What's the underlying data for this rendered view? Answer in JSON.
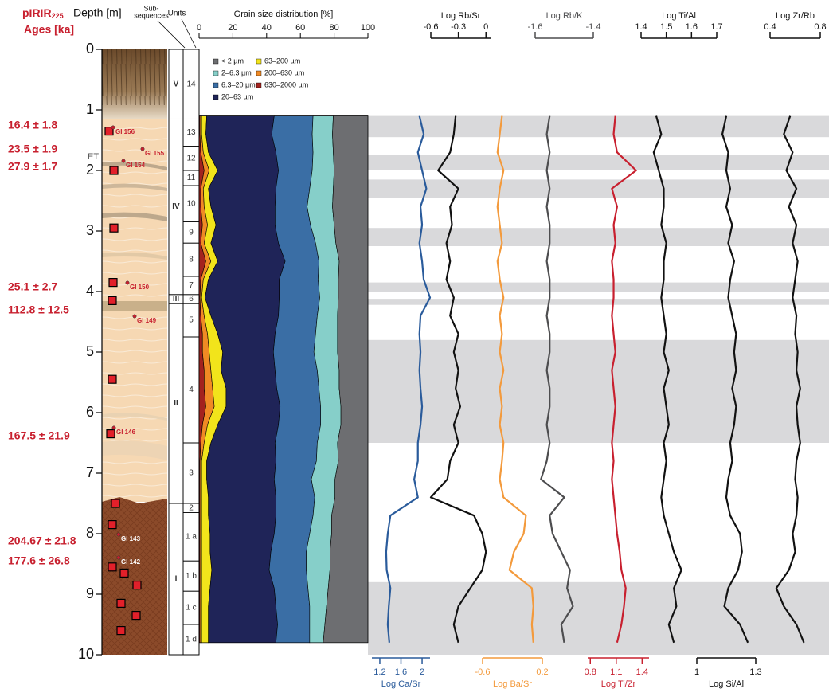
{
  "header": {
    "age_title": "pIRIR",
    "age_title_sub": "225",
    "age_unit": "Ages [ka]",
    "depth_label": "Depth [m]",
    "subseq_label_1": "Sub-",
    "subseq_label_2": "sequences",
    "units_label": "Units"
  },
  "depth_axis": {
    "ylim": [
      0,
      10
    ],
    "yticks": [
      0,
      1,
      2,
      3,
      4,
      5,
      6,
      7,
      8,
      9,
      10
    ]
  },
  "ages": {
    "labels": [
      "16.4  ± 1.8",
      "23.5  ± 1.9",
      "27.9  ± 1.7",
      "25.1  ± 2.7",
      "112.8  ± 12.5",
      "167.5 ± 21.9",
      "204.67 ± 21.8",
      "177.6  ± 26.8"
    ]
  },
  "profile": {
    "et_label": "ET",
    "sample_labels": [
      "GI 156",
      "GI 155",
      "GI 154",
      "GI 150",
      "GI 149",
      "GI 146",
      "GI 143",
      "GI 142"
    ],
    "sample_depths": [
      1.35,
      2.0,
      2.95,
      3.85,
      4.15,
      5.45,
      6.35,
      7.5,
      7.85,
      8.55,
      8.65,
      8.85,
      9.15,
      9.35,
      9.6
    ]
  },
  "units": [
    {
      "label": "V",
      "top": 0,
      "bottom": 1.15
    },
    {
      "label": "IV",
      "top": 1.15,
      "bottom": 4.05
    },
    {
      "label": "III",
      "top": 4.05,
      "bottom": 4.2
    },
    {
      "label": "II",
      "top": 4.2,
      "bottom": 7.5
    },
    {
      "label": "I",
      "top": 7.5,
      "bottom": 10
    }
  ],
  "subsequences": [
    {
      "label": "14",
      "top": 0,
      "bottom": 1.15
    },
    {
      "label": "13",
      "top": 1.15,
      "bottom": 1.6
    },
    {
      "label": "12",
      "top": 1.6,
      "bottom": 2.0
    },
    {
      "label": "11",
      "top": 2.0,
      "bottom": 2.25
    },
    {
      "label": "10",
      "top": 2.25,
      "bottom": 2.85
    },
    {
      "label": "9",
      "top": 2.85,
      "bottom": 3.2
    },
    {
      "label": "8",
      "top": 3.2,
      "bottom": 3.75
    },
    {
      "label": "7",
      "top": 3.75,
      "bottom": 4.05
    },
    {
      "label": "6",
      "top": 4.05,
      "bottom": 4.2
    },
    {
      "label": "5",
      "top": 4.2,
      "bottom": 4.75
    },
    {
      "label": "4",
      "top": 4.75,
      "bottom": 6.5
    },
    {
      "label": "3",
      "top": 6.5,
      "bottom": 7.5
    },
    {
      "label": "2",
      "top": 7.5,
      "bottom": 7.65
    },
    {
      "label": "1 a",
      "top": 7.65,
      "bottom": 8.45
    },
    {
      "label": "1 b",
      "top": 8.45,
      "bottom": 8.95
    },
    {
      "label": "1 c",
      "top": 8.95,
      "bottom": 9.5
    },
    {
      "label": "1 d",
      "top": 9.5,
      "bottom": 10
    }
  ],
  "shaded_intervals": [
    [
      1.1,
      1.45
    ],
    [
      1.75,
      2.0
    ],
    [
      2.15,
      2.45
    ],
    [
      2.95,
      3.25
    ],
    [
      3.85,
      4.0
    ],
    [
      4.12,
      4.22
    ],
    [
      4.8,
      6.5
    ],
    [
      8.8,
      10
    ]
  ],
  "depths": [
    1.1,
    1.4,
    1.7,
    2.0,
    2.3,
    2.6,
    2.9,
    3.2,
    3.5,
    3.8,
    4.1,
    4.4,
    4.7,
    5.0,
    5.3,
    5.6,
    5.9,
    6.2,
    6.5,
    6.8,
    7.1,
    7.4,
    7.7,
    8.0,
    8.3,
    8.6,
    8.9,
    9.2,
    9.5,
    9.8
  ],
  "chart_data": [
    {
      "type": "area",
      "stacked": true,
      "xlabel": "Grain size distribution [%]",
      "xlim": [
        0,
        100
      ],
      "xticks": [
        0,
        20,
        40,
        60,
        80,
        100
      ],
      "series": [
        {
          "name": "< 2 µm",
          "color": "#6d6e71",
          "values": [
            20.5,
            21,
            20.5,
            20,
            20.5,
            21,
            20,
            19,
            17,
            17.5,
            17.5,
            18,
            18,
            18,
            17,
            17,
            16,
            16,
            18,
            17.5,
            19.5,
            19.5,
            21.5,
            21.5,
            22.5,
            22.5,
            23.5,
            24.5,
            25.5,
            26.5
          ]
        },
        {
          "name": "2–6.3 µm",
          "color": "#86cfc9",
          "values": [
            12,
            12,
            12,
            13,
            14,
            15,
            14,
            12,
            12,
            12,
            11,
            12,
            13,
            14,
            13,
            12,
            12,
            12,
            12,
            13,
            14,
            12,
            11,
            13,
            14,
            14,
            12,
            10,
            9,
            8
          ]
        },
        {
          "name": "6.3–20 µm",
          "color": "#3a6ea5",
          "values": [
            23,
            24,
            22,
            20,
            20,
            19,
            21,
            22,
            20,
            23,
            24,
            23,
            24,
            24,
            25,
            25,
            24,
            25,
            25,
            24,
            22,
            23,
            22,
            21,
            21,
            22,
            20,
            20,
            19,
            20
          ]
        },
        {
          "name": "20–63 µm",
          "color": "#1f2458",
          "values": [
            40,
            39,
            40,
            36,
            40,
            38,
            35,
            40,
            40,
            42,
            44,
            40,
            34,
            30,
            32,
            30,
            32,
            36,
            38,
            41,
            40,
            40,
            40,
            38,
            36,
            34,
            38,
            40,
            41,
            40
          ]
        },
        {
          "name": "63–200 µm",
          "color": "#f2e41b",
          "values": [
            3,
            2.5,
            3,
            5,
            3,
            4,
            5,
            4,
            4,
            3,
            2,
            4,
            6,
            8,
            6,
            8,
            7,
            6,
            4,
            3,
            3,
            4,
            4,
            5,
            5,
            6,
            5,
            4,
            4,
            4
          ]
        },
        {
          "name": "200–630 µm",
          "color": "#f08a24",
          "values": [
            1,
            1,
            1.5,
            3,
            1.5,
            2,
            3,
            2,
            3,
            1.5,
            1,
            2,
            3,
            4,
            4,
            5,
            5,
            3,
            2,
            1,
            1,
            1,
            1,
            1,
            1,
            1,
            1,
            1,
            1,
            1
          ]
        },
        {
          "name": "630–2000 µm",
          "color": "#a3221e",
          "values": [
            0.5,
            0.5,
            1,
            3,
            1,
            1,
            2,
            1,
            4,
            1,
            0.5,
            1,
            2,
            2,
            3,
            3,
            4,
            2,
            1,
            0.5,
            0.5,
            0.5,
            0.5,
            0.5,
            0.5,
            0.5,
            0.5,
            0.5,
            0.5,
            0.5
          ]
        }
      ]
    },
    {
      "type": "line",
      "xlabel": "Log Ca/Sr",
      "axis_position": "bottom",
      "color": "#2a5b9b",
      "xlim": [
        1.05,
        2.15
      ],
      "xticks": [
        1.2,
        1.6,
        2
      ],
      "values": [
        1.95,
        2.03,
        1.92,
        2.0,
        2.08,
        1.97,
        2.0,
        1.95,
        2.0,
        2.03,
        2.15,
        1.97,
        1.95,
        1.97,
        1.95,
        1.97,
        2.0,
        1.97,
        1.92,
        1.92,
        1.85,
        1.92,
        1.4,
        1.35,
        1.32,
        1.33,
        1.4,
        1.37,
        1.35,
        1.38
      ]
    },
    {
      "type": "line",
      "xlabel": "Log Rb/Sr",
      "axis_position": "top",
      "color": "#111111",
      "xlim": [
        -0.6,
        0.05
      ],
      "xticks": [
        -0.6,
        -0.3,
        0
      ],
      "values": [
        -0.33,
        -0.35,
        -0.39,
        -0.52,
        -0.3,
        -0.39,
        -0.37,
        -0.43,
        -0.39,
        -0.43,
        -0.35,
        -0.39,
        -0.3,
        -0.35,
        -0.3,
        -0.33,
        -0.28,
        -0.35,
        -0.3,
        -0.39,
        -0.42,
        -0.6,
        -0.13,
        -0.04,
        0.0,
        -0.04,
        -0.17,
        -0.3,
        -0.35,
        -0.3
      ]
    },
    {
      "type": "line",
      "xlabel": "Log Ba/Sr",
      "axis_position": "bottom",
      "color": "#f39a3c",
      "xlim": [
        -0.6,
        0.2
      ],
      "xticks": [
        -0.6,
        0.2
      ],
      "values": [
        -0.34,
        -0.37,
        -0.4,
        -0.32,
        -0.37,
        -0.4,
        -0.37,
        -0.34,
        -0.4,
        -0.37,
        -0.32,
        -0.37,
        -0.34,
        -0.37,
        -0.32,
        -0.37,
        -0.34,
        -0.37,
        -0.32,
        -0.34,
        -0.37,
        -0.32,
        -0.02,
        -0.05,
        -0.18,
        -0.24,
        0.06,
        0.08,
        0.06,
        0.08
      ]
    },
    {
      "type": "line",
      "xlabel": "Log Rb/K",
      "axis_position": "top",
      "color": "#4d4d4f",
      "xlim": [
        -1.6,
        -1.4
      ],
      "xticks": [
        -1.6,
        -1.4
      ],
      "values": [
        -1.55,
        -1.56,
        -1.55,
        -1.56,
        -1.55,
        -1.56,
        -1.55,
        -1.55,
        -1.56,
        -1.55,
        -1.55,
        -1.56,
        -1.55,
        -1.55,
        -1.56,
        -1.55,
        -1.55,
        -1.56,
        -1.55,
        -1.56,
        -1.58,
        -1.5,
        -1.55,
        -1.54,
        -1.51,
        -1.48,
        -1.49,
        -1.47,
        -1.51,
        -1.5
      ]
    },
    {
      "type": "line",
      "xlabel": "Log Ti/Zr",
      "axis_position": "bottom",
      "color": "#c8202f",
      "xlim": [
        0.77,
        1.48
      ],
      "xticks": [
        0.8,
        1.1,
        1.4
      ],
      "values": [
        1.09,
        1.07,
        1.11,
        1.33,
        1.05,
        1.11,
        1.07,
        1.09,
        1.05,
        1.07,
        1.07,
        1.05,
        1.07,
        1.09,
        1.05,
        1.07,
        1.09,
        1.07,
        1.05,
        1.07,
        1.05,
        1.07,
        1.09,
        1.11,
        1.14,
        1.16,
        1.21,
        1.19,
        1.16,
        1.11
      ]
    },
    {
      "type": "line",
      "xlabel": "Log Ti/Al",
      "axis_position": "top",
      "color": "#111111",
      "xlim": [
        1.4,
        1.7
      ],
      "xticks": [
        1.4,
        1.5,
        1.6,
        1.7
      ],
      "values": [
        1.46,
        1.48,
        1.45,
        1.47,
        1.49,
        1.49,
        1.48,
        1.5,
        1.49,
        1.49,
        1.48,
        1.49,
        1.5,
        1.49,
        1.51,
        1.49,
        1.5,
        1.51,
        1.49,
        1.5,
        1.49,
        1.48,
        1.49,
        1.51,
        1.53,
        1.56,
        1.53,
        1.54,
        1.51,
        1.53
      ]
    },
    {
      "type": "line",
      "xlabel": "Log Si/Al",
      "axis_position": "bottom",
      "color": "#111111",
      "xlim": [
        1,
        1.3
      ],
      "xticks": [
        1,
        1.3
      ],
      "values": [
        1.15,
        1.13,
        1.16,
        1.15,
        1.17,
        1.15,
        1.18,
        1.16,
        1.19,
        1.17,
        1.16,
        1.18,
        1.2,
        1.19,
        1.2,
        1.18,
        1.2,
        1.19,
        1.17,
        1.18,
        1.16,
        1.15,
        1.17,
        1.22,
        1.23,
        1.21,
        1.16,
        1.14,
        1.22,
        1.26
      ]
    },
    {
      "type": "line",
      "xlabel": "Log Zr/Rb",
      "axis_position": "top",
      "color": "#111111",
      "xlim": [
        0.4,
        0.8
      ],
      "xticks": [
        0.4,
        0.8
      ],
      "values": [
        0.56,
        0.51,
        0.58,
        0.53,
        0.61,
        0.55,
        0.61,
        0.58,
        0.62,
        0.6,
        0.58,
        0.61,
        0.6,
        0.62,
        0.61,
        0.64,
        0.61,
        0.62,
        0.64,
        0.61,
        0.6,
        0.62,
        0.61,
        0.58,
        0.6,
        0.55,
        0.45,
        0.51,
        0.61,
        0.67
      ]
    }
  ]
}
